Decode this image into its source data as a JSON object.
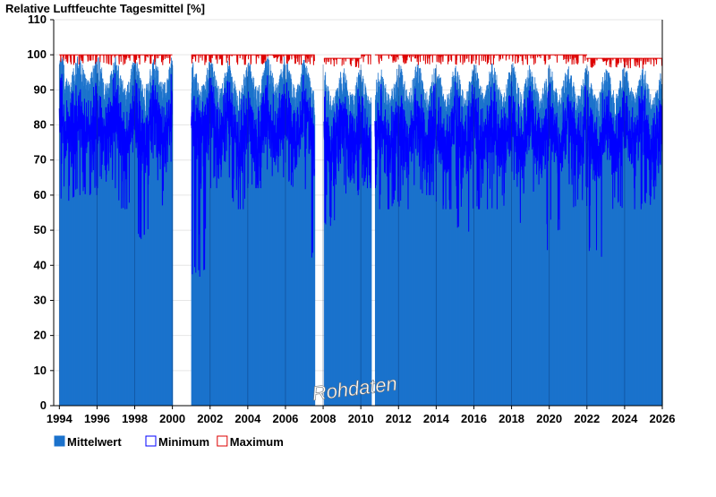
{
  "chart_data": {
    "type": "bar",
    "title": "Relative Luftfeuchte Tagesmittel [%]",
    "ylim": [
      0,
      110
    ],
    "yticks": [
      0,
      10,
      20,
      30,
      40,
      50,
      60,
      70,
      80,
      90,
      100,
      110
    ],
    "xlim": [
      1993.7,
      2026.0
    ],
    "xticks": [
      "1994",
      "1996",
      "1998",
      "2000",
      "2002",
      "2004",
      "2006",
      "2008",
      "2010",
      "2012",
      "2014",
      "2016",
      "2018",
      "2020",
      "2022",
      "2024",
      "2026"
    ],
    "grid": true,
    "legend_position": "bottom-left",
    "watermark": "Rohdaten",
    "series": [
      {
        "name": "Mittelwert",
        "color": "#1b72cc",
        "role": "fill"
      },
      {
        "name": "Minimum",
        "color": "#0000ff",
        "role": "line"
      },
      {
        "name": "Maximum",
        "color": "#dd0000",
        "role": "line"
      }
    ],
    "data_gaps": [
      [
        2000.15,
        2001.0
      ],
      [
        2007.55,
        2008.05
      ],
      [
        2010.55,
        2010.75
      ]
    ],
    "year_blocks": [
      {
        "year": 1994,
        "mean": 92,
        "min": 58,
        "max": 100
      },
      {
        "year": 1995,
        "mean": 92,
        "min": 60,
        "max": 100
      },
      {
        "year": 1996,
        "mean": 91,
        "min": 62,
        "max": 100
      },
      {
        "year": 1997,
        "mean": 90,
        "min": 56,
        "max": 100
      },
      {
        "year": 1998,
        "mean": 90,
        "min": 47,
        "max": 100
      },
      {
        "year": 1999,
        "mean": 91,
        "min": 56,
        "max": 100
      },
      {
        "year": 2001,
        "mean": 90,
        "min": 36,
        "max": 100
      },
      {
        "year": 2002,
        "mean": 90,
        "min": 62,
        "max": 100
      },
      {
        "year": 2003,
        "mean": 89,
        "min": 56,
        "max": 100
      },
      {
        "year": 2004,
        "mean": 90,
        "min": 62,
        "max": 100
      },
      {
        "year": 2005,
        "mean": 91,
        "min": 65,
        "max": 100
      },
      {
        "year": 2006,
        "mean": 90,
        "min": 62,
        "max": 100
      },
      {
        "year": 2007,
        "mean": 89,
        "min": 42,
        "max": 100
      },
      {
        "year": 2008,
        "mean": 87,
        "min": 50,
        "max": 99
      },
      {
        "year": 2009,
        "mean": 88,
        "min": 60,
        "max": 99
      },
      {
        "year": 2010,
        "mean": 87,
        "min": 62,
        "max": 100
      },
      {
        "year": 2011,
        "mean": 88,
        "min": 56,
        "max": 100
      },
      {
        "year": 2012,
        "mean": 89,
        "min": 56,
        "max": 100
      },
      {
        "year": 2013,
        "mean": 89,
        "min": 60,
        "max": 100
      },
      {
        "year": 2014,
        "mean": 88,
        "min": 56,
        "max": 100
      },
      {
        "year": 2015,
        "mean": 88,
        "min": 48,
        "max": 100
      },
      {
        "year": 2016,
        "mean": 89,
        "min": 56,
        "max": 100
      },
      {
        "year": 2017,
        "mean": 88,
        "min": 56,
        "max": 100
      },
      {
        "year": 2018,
        "mean": 89,
        "min": 52,
        "max": 100
      },
      {
        "year": 2019,
        "mean": 88,
        "min": 41,
        "max": 100
      },
      {
        "year": 2020,
        "mean": 88,
        "min": 50,
        "max": 100
      },
      {
        "year": 2021,
        "mean": 88,
        "min": 56,
        "max": 100
      },
      {
        "year": 2022,
        "mean": 87,
        "min": 42,
        "max": 99
      },
      {
        "year": 2023,
        "mean": 88,
        "min": 56,
        "max": 99
      },
      {
        "year": 2024,
        "mean": 88,
        "min": 56,
        "max": 99
      },
      {
        "year": 2025,
        "mean": 87,
        "min": 56,
        "max": 99
      }
    ]
  }
}
